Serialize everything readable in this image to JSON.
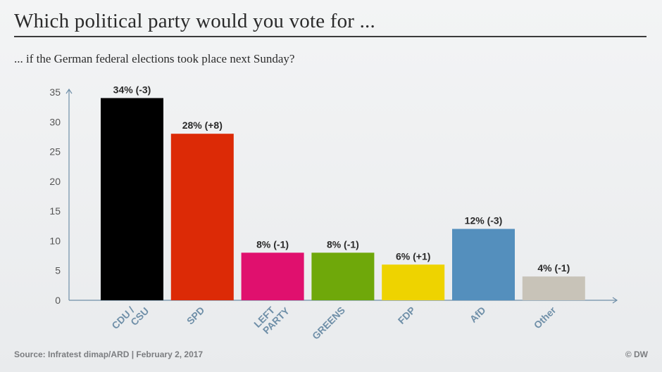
{
  "title": "Which political party would you vote for ...",
  "subtitle": "... if the German federal elections took place next Sunday?",
  "source": "Source: Infratest dimap/ARD  |  February 2, 2017",
  "credit": "© DW",
  "chart_data": {
    "type": "bar",
    "categories": [
      "CDU / CSU",
      "SPD",
      "LEFT PARTY",
      "GREENS",
      "FDP",
      "AfD",
      "Other"
    ],
    "category_lines": [
      [
        "CDU /",
        "CSU"
      ],
      [
        "SPD"
      ],
      [
        "LEFT",
        "PARTY"
      ],
      [
        "GREENS"
      ],
      [
        "FDP"
      ],
      [
        "AfD"
      ],
      [
        "Other"
      ]
    ],
    "values": [
      34,
      28,
      8,
      8,
      6,
      12,
      4
    ],
    "data_labels": [
      "34% (-3)",
      "28% (+8)",
      "8% (-1)",
      "8% (-1)",
      "6% (+1)",
      "12% (-3)",
      "4% (-1)"
    ],
    "colors": [
      "#000000",
      "#dc2a06",
      "#e0106e",
      "#6fa80a",
      "#eed300",
      "#548fbd",
      "#c8c3b8"
    ],
    "ylim": [
      0,
      35
    ],
    "yticks": [
      0,
      5,
      10,
      15,
      20,
      25,
      30,
      35
    ],
    "xlabel": "",
    "ylabel": "",
    "grid": false,
    "axis_color": "#6f8fa8"
  }
}
